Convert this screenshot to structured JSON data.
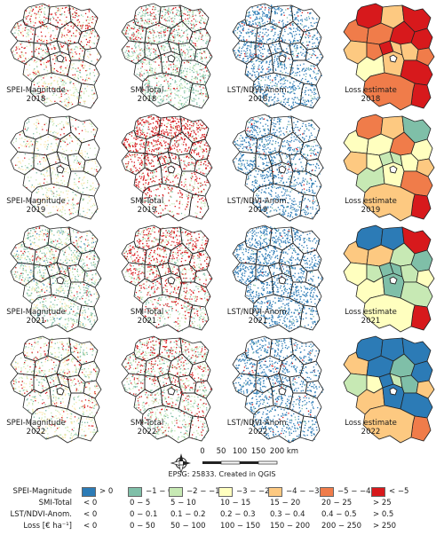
{
  "panels": [
    {
      "row": 0,
      "col": 0,
      "index": "SPEI-Magnitude",
      "year": "2018"
    },
    {
      "row": 0,
      "col": 1,
      "index": "SMI-Total",
      "year": "2018"
    },
    {
      "row": 0,
      "col": 2,
      "index": "LST/NDVI-Anom.",
      "year": "2018"
    },
    {
      "row": 0,
      "col": 3,
      "index": "Loss estimate",
      "year": "2018"
    },
    {
      "row": 1,
      "col": 0,
      "index": "SPEI-Magnitude",
      "year": "2019"
    },
    {
      "row": 1,
      "col": 1,
      "index": "SMI-Total",
      "year": "2019"
    },
    {
      "row": 1,
      "col": 2,
      "index": "LST/NDVI-Anom.",
      "year": "2019"
    },
    {
      "row": 1,
      "col": 3,
      "index": "Loss estimate",
      "year": "2019"
    },
    {
      "row": 2,
      "col": 0,
      "index": "SPEI-Magnitude",
      "year": "2021"
    },
    {
      "row": 2,
      "col": 1,
      "index": "SMI-Total",
      "year": "2021"
    },
    {
      "row": 2,
      "col": 2,
      "index": "LST/NDVI-Anom.",
      "year": "2021"
    },
    {
      "row": 2,
      "col": 3,
      "index": "Loss estimate",
      "year": "2021"
    },
    {
      "row": 3,
      "col": 0,
      "index": "SPEI-Magnitude",
      "year": "2022"
    },
    {
      "row": 3,
      "col": 1,
      "index": "SMI-Total",
      "year": "2022"
    },
    {
      "row": 3,
      "col": 2,
      "index": "LST/NDVI-Anom.",
      "year": "2022"
    },
    {
      "row": 3,
      "col": 3,
      "index": "Loss estimate",
      "year": "2022"
    }
  ],
  "scale_bar": {
    "ticks": [
      "0",
      "50",
      "100",
      "150",
      "200 km"
    ]
  },
  "crs_note": "EPSG: 25833. Created in QGIS",
  "legend": {
    "rows": [
      "SPEI-Magnitude",
      "SMI-Total",
      "LST/NDVI-Anom.",
      "Loss [€ ha⁻¹]"
    ],
    "classes": [
      {
        "color": "#2c7bb6",
        "values": [
          "> 0",
          "< 0",
          "< 0",
          "< 0"
        ]
      },
      {
        "color": "#7fbfa8",
        "values": [
          "−1 − 0",
          "0 − 5",
          "0 − 0.1",
          "0 − 50"
        ]
      },
      {
        "color": "#c7e9b4",
        "values": [
          "−2 − −1",
          "5 − 10",
          "0.1 − 0.2",
          "50 − 100"
        ]
      },
      {
        "color": "#ffffbf",
        "values": [
          "−3 − −2",
          "10 − 15",
          "0.2 − 0.3",
          "100 − 150"
        ]
      },
      {
        "color": "#fdc981",
        "values": [
          "−4 − −3",
          "15 − 20",
          "0.3 − 0.4",
          "150 − 200"
        ]
      },
      {
        "color": "#f07c4a",
        "values": [
          "−5 − −4",
          "20 − 25",
          "0.4 − 0.5",
          "200 − 250"
        ]
      },
      {
        "color": "#d7191c",
        "values": [
          "< −5",
          "> 25",
          "> 0.5",
          "> 250"
        ]
      }
    ]
  },
  "loss_estimate_classes": {
    "2018": [
      6,
      4,
      6,
      5,
      5,
      6,
      6,
      4,
      5,
      6,
      4,
      4,
      5,
      3,
      4,
      6,
      6,
      5
    ],
    "2019": [
      5,
      4,
      1,
      3,
      3,
      5,
      3,
      4,
      3,
      2,
      2,
      3,
      4,
      2,
      3,
      5,
      6,
      4
    ],
    "2021": [
      0,
      0,
      6,
      4,
      4,
      2,
      1,
      3,
      2,
      1,
      1,
      2,
      3,
      3,
      1,
      2,
      6,
      3
    ],
    "2022": [
      0,
      0,
      0,
      4,
      0,
      1,
      0,
      2,
      3,
      0,
      2,
      1,
      4,
      4,
      0,
      0,
      5,
      4
    ]
  },
  "raster_dot_mix": {
    "SPEI-Magnitude": {
      "2018": {
        "blue": 0.0,
        "green": 0.08,
        "light": 0.25,
        "red": 0.25
      },
      "2019": {
        "blue": 0.0,
        "green": 0.05,
        "light": 0.25,
        "red": 0.05
      },
      "2021": {
        "blue": 0.02,
        "green": 0.3,
        "light": 0.25,
        "red": 0.08
      },
      "2022": {
        "blue": 0.0,
        "green": 0.1,
        "light": 0.3,
        "red": 0.12
      }
    },
    "SMI-Total": {
      "2018": {
        "blue": 0.0,
        "green": 0.35,
        "light": 0.2,
        "red": 0.2
      },
      "2019": {
        "blue": 0.0,
        "green": 0.05,
        "light": 0.15,
        "red": 0.7
      },
      "2021": {
        "blue": 0.0,
        "green": 0.1,
        "light": 0.2,
        "red": 0.45
      },
      "2022": {
        "blue": 0.0,
        "green": 0.15,
        "light": 0.25,
        "red": 0.3
      }
    },
    "LST/NDVI-Anom.": {
      "2018": {
        "blue": 0.6,
        "green": 0.05,
        "light": 0.0,
        "red": 0.04
      },
      "2019": {
        "blue": 0.5,
        "green": 0.05,
        "light": 0.0,
        "red": 0.03
      },
      "2021": {
        "blue": 0.65,
        "green": 0.03,
        "light": 0.0,
        "red": 0.01
      },
      "2022": {
        "blue": 0.5,
        "green": 0.03,
        "light": 0.0,
        "red": 0.03
      }
    }
  }
}
